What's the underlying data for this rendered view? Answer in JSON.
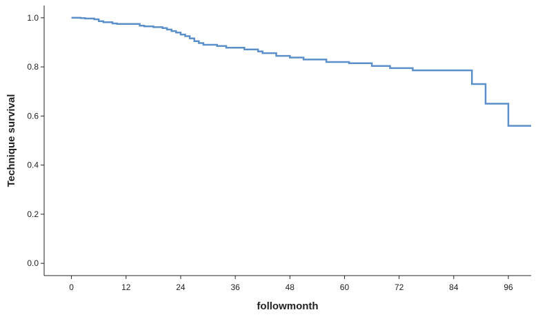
{
  "chart_data": {
    "type": "line",
    "subtype": "kaplan-meier-step",
    "xlabel": "followmonth",
    "ylabel": "Technique survival",
    "xlim": [
      -6,
      101
    ],
    "ylim": [
      -0.05,
      1.05
    ],
    "x_ticks": [
      0,
      12,
      24,
      36,
      48,
      60,
      72,
      84,
      96
    ],
    "y_ticks": [
      0.0,
      0.2,
      0.4,
      0.6,
      0.8,
      1.0
    ],
    "y_tick_labels": [
      "0.0",
      "0.2",
      "0.4",
      "0.6",
      "0.8",
      "1.0"
    ],
    "grid": false,
    "legend": "none",
    "series": [
      {
        "color": "#5b8fc9",
        "step": "post",
        "points": [
          [
            0,
            1.0
          ],
          [
            2,
            0.999
          ],
          [
            3,
            0.997
          ],
          [
            5,
            0.994
          ],
          [
            6,
            0.986
          ],
          [
            7,
            0.982
          ],
          [
            9,
            0.977
          ],
          [
            10,
            0.975
          ],
          [
            15,
            0.968
          ],
          [
            16,
            0.965
          ],
          [
            18,
            0.962
          ],
          [
            20,
            0.958
          ],
          [
            21,
            0.952
          ],
          [
            22,
            0.946
          ],
          [
            23,
            0.94
          ],
          [
            24,
            0.932
          ],
          [
            25,
            0.925
          ],
          [
            26,
            0.916
          ],
          [
            27,
            0.905
          ],
          [
            28,
            0.897
          ],
          [
            29,
            0.89
          ],
          [
            32,
            0.885
          ],
          [
            34,
            0.878
          ],
          [
            38,
            0.871
          ],
          [
            41,
            0.863
          ],
          [
            42,
            0.856
          ],
          [
            45,
            0.845
          ],
          [
            48,
            0.838
          ],
          [
            51,
            0.83
          ],
          [
            56,
            0.82
          ],
          [
            61,
            0.815
          ],
          [
            66,
            0.804
          ],
          [
            70,
            0.795
          ],
          [
            75,
            0.786
          ],
          [
            88,
            0.73
          ],
          [
            91,
            0.65
          ],
          [
            96,
            0.56
          ],
          [
            101,
            0.56
          ]
        ]
      }
    ]
  }
}
